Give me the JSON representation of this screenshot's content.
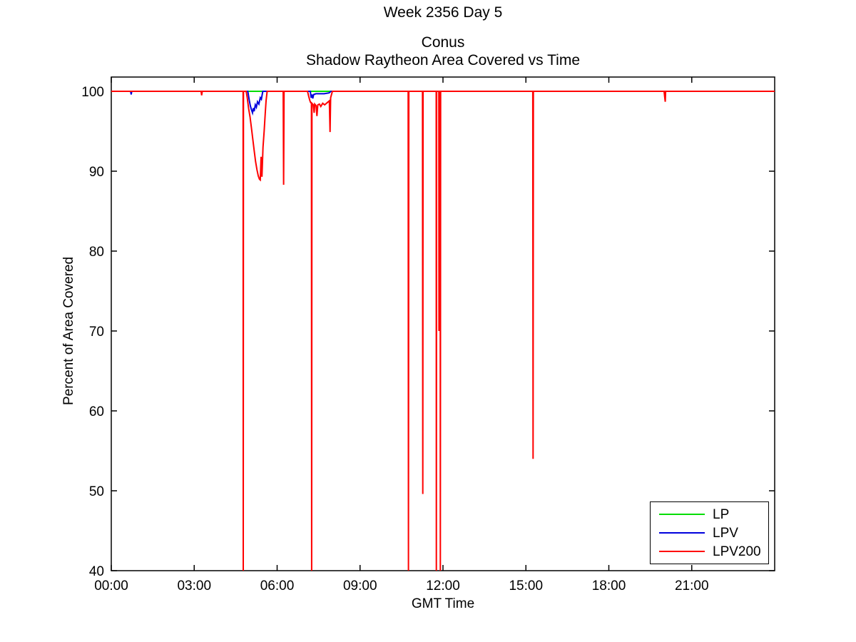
{
  "figure": {
    "suptitle": "Week 2356 Day 5",
    "title_line1": "Conus",
    "title_line2": "Shadow Raytheon Area Covered vs Time"
  },
  "chart_data": {
    "type": "line",
    "title": "Conus - Shadow Raytheon Area Covered vs Time",
    "suptitle": "Week 2356 Day 5",
    "xlabel": "GMT Time",
    "ylabel": "Percent of Area Covered",
    "x_unit": "hours GMT",
    "xlim_hours": [
      0,
      24
    ],
    "ylim": [
      40,
      100
    ],
    "grid": false,
    "legend_position": "lower right",
    "x_ticks_hours": [
      0,
      3,
      6,
      9,
      12,
      15,
      18,
      21
    ],
    "x_tick_labels": [
      "00:00",
      "03:00",
      "06:00",
      "09:00",
      "12:00",
      "15:00",
      "18:00",
      "21:00"
    ],
    "y_ticks": [
      40,
      50,
      60,
      70,
      80,
      90,
      100
    ],
    "y_tick_labels": [
      "40",
      "50",
      "60",
      "70",
      "80",
      "90",
      "100"
    ],
    "series": [
      {
        "name": "LP",
        "color": "#00dd00",
        "points": [
          [
            0,
            100
          ],
          [
            24,
            100
          ]
        ]
      },
      {
        "name": "LPV",
        "color": "#0000dd",
        "points": [
          [
            0,
            100
          ],
          [
            0.7,
            100
          ],
          [
            0.72,
            99.6
          ],
          [
            0.74,
            100
          ],
          [
            4.94,
            100
          ],
          [
            4.99,
            98.9
          ],
          [
            5.03,
            98.2
          ],
          [
            5.07,
            97.7
          ],
          [
            5.11,
            97.3
          ],
          [
            5.14,
            97.9
          ],
          [
            5.17,
            97.5
          ],
          [
            5.21,
            98.3
          ],
          [
            5.25,
            98.0
          ],
          [
            5.29,
            98.7
          ],
          [
            5.34,
            98.4
          ],
          [
            5.39,
            99.2
          ],
          [
            5.43,
            99.0
          ],
          [
            5.48,
            100
          ],
          [
            7.2,
            100
          ],
          [
            7.23,
            99.2
          ],
          [
            7.26,
            99.6
          ],
          [
            7.29,
            99.1
          ],
          [
            7.32,
            99.6
          ],
          [
            7.4,
            99.7
          ],
          [
            7.7,
            99.7
          ],
          [
            7.88,
            99.8
          ],
          [
            7.95,
            100
          ],
          [
            24,
            100
          ]
        ]
      },
      {
        "name": "LPV200",
        "color": "#ff0000",
        "points": [
          [
            0,
            100
          ],
          [
            3.25,
            100
          ],
          [
            3.27,
            99.5
          ],
          [
            3.29,
            100
          ],
          [
            4.77,
            100
          ],
          [
            4.775,
            40
          ],
          [
            4.782,
            100
          ],
          [
            4.88,
            100
          ],
          [
            4.92,
            99.2
          ],
          [
            4.97,
            97.8
          ],
          [
            5.02,
            96.8
          ],
          [
            5.07,
            95.4
          ],
          [
            5.12,
            94.0
          ],
          [
            5.17,
            92.6
          ],
          [
            5.22,
            91.2
          ],
          [
            5.27,
            90.2
          ],
          [
            5.32,
            89.4
          ],
          [
            5.36,
            89.0
          ],
          [
            5.39,
            88.9
          ],
          [
            5.42,
            91.8
          ],
          [
            5.45,
            89.3
          ],
          [
            5.49,
            93.0
          ],
          [
            5.53,
            95.0
          ],
          [
            5.57,
            97.2
          ],
          [
            5.6,
            98.8
          ],
          [
            5.64,
            100
          ],
          [
            6.22,
            100
          ],
          [
            6.235,
            88.3
          ],
          [
            6.25,
            100
          ],
          [
            7.1,
            100
          ],
          [
            7.14,
            99.4
          ],
          [
            7.18,
            98.9
          ],
          [
            7.21,
            98.6
          ],
          [
            7.24,
            98.5
          ],
          [
            7.25,
            40
          ],
          [
            7.26,
            98.5
          ],
          [
            7.31,
            98.3
          ],
          [
            7.34,
            97.3
          ],
          [
            7.36,
            98.4
          ],
          [
            7.41,
            98.2
          ],
          [
            7.44,
            96.9
          ],
          [
            7.47,
            98.3
          ],
          [
            7.53,
            98.4
          ],
          [
            7.58,
            98.1
          ],
          [
            7.65,
            98.5
          ],
          [
            7.72,
            98.3
          ],
          [
            7.82,
            98.6
          ],
          [
            7.89,
            98.8
          ],
          [
            7.915,
            94.9
          ],
          [
            7.935,
            99.2
          ],
          [
            8.0,
            100
          ],
          [
            10.74,
            100
          ],
          [
            10.75,
            40
          ],
          [
            10.765,
            100
          ],
          [
            11.26,
            100
          ],
          [
            11.27,
            49.6
          ],
          [
            11.28,
            100
          ],
          [
            11.755,
            100
          ],
          [
            11.76,
            40
          ],
          [
            11.77,
            100
          ],
          [
            11.85,
            100
          ],
          [
            11.855,
            70
          ],
          [
            11.865,
            100
          ],
          [
            11.9,
            100
          ],
          [
            11.905,
            40
          ],
          [
            11.915,
            100
          ],
          [
            15.25,
            100
          ],
          [
            15.26,
            54
          ],
          [
            15.27,
            100
          ],
          [
            20.0,
            100
          ],
          [
            20.02,
            99.3
          ],
          [
            20.04,
            98.7
          ],
          [
            20.055,
            100
          ],
          [
            24,
            100
          ]
        ]
      }
    ]
  }
}
